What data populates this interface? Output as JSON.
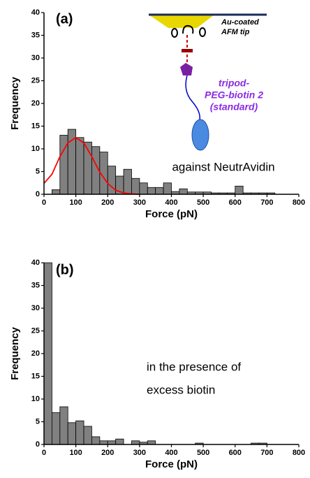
{
  "chart_data": [
    {
      "type": "histogram",
      "panel_label": "(a)",
      "xlabel": "Force (pN)",
      "ylabel": "Frequency",
      "annotation": [
        "against NeutrAvidin"
      ],
      "inset_labels": [
        "Au-coated",
        "AFM tip",
        "tripod-",
        "PEG-biotin 2",
        "(standard)"
      ],
      "bins": [
        0,
        25,
        50,
        75,
        100,
        125,
        150,
        175,
        200,
        225,
        250,
        275,
        300,
        325,
        350,
        375,
        400,
        425,
        450,
        475,
        500,
        525,
        550,
        575,
        600,
        625,
        650,
        675,
        700,
        725
      ],
      "values": [
        0,
        1,
        13,
        14.3,
        12.5,
        11.5,
        10.5,
        9.3,
        6.2,
        4,
        5.5,
        3.5,
        2.5,
        1.5,
        1.5,
        2.5,
        0.6,
        1.2,
        0.5,
        0.5,
        0.5,
        0.3,
        0.3,
        0.3,
        1.8,
        0.3,
        0.3,
        0.3,
        0.3
      ],
      "color": "#808080",
      "fit": {
        "x": [
          0,
          25,
          50,
          75,
          100,
          125,
          150,
          175,
          200,
          225,
          250,
          275,
          300
        ],
        "values": [
          2.4,
          4.4,
          8.3,
          11.3,
          12.5,
          11.3,
          8.3,
          4.9,
          2.4,
          0.9,
          0.3,
          0.1,
          0
        ],
        "color": "#ff0000"
      },
      "xlim": [
        0,
        800
      ],
      "xticks": [
        0,
        100,
        200,
        300,
        400,
        500,
        600,
        700,
        800
      ],
      "ylim": [
        0,
        40
      ],
      "yticks": [
        0,
        5,
        10,
        15,
        20,
        25,
        30,
        35,
        40
      ]
    },
    {
      "type": "histogram",
      "panel_label": "(b)",
      "xlabel": "Force (pN)",
      "ylabel": "Frequency",
      "annotation": [
        "in the presence of",
        "excess biotin"
      ],
      "bins": [
        0,
        25,
        50,
        75,
        100,
        125,
        150,
        175,
        200,
        225,
        250,
        275,
        300,
        325,
        350,
        375,
        400,
        425,
        450,
        475,
        500,
        525,
        550,
        575,
        600,
        625,
        650,
        675,
        700
      ],
      "values": [
        40,
        7,
        8.3,
        4.8,
        5.2,
        4,
        1.7,
        0.8,
        0.8,
        1.2,
        0,
        0.8,
        0.5,
        0.8,
        0,
        0,
        0,
        0,
        0,
        0.3,
        0,
        0,
        0,
        0,
        0,
        0,
        0.3,
        0.3
      ],
      "color": "#808080",
      "xlim": [
        0,
        800
      ],
      "xticks": [
        0,
        100,
        200,
        300,
        400,
        500,
        600,
        700,
        800
      ],
      "ylim": [
        0,
        40
      ],
      "yticks": [
        0,
        5,
        10,
        15,
        20,
        25,
        30,
        35,
        40
      ]
    }
  ]
}
